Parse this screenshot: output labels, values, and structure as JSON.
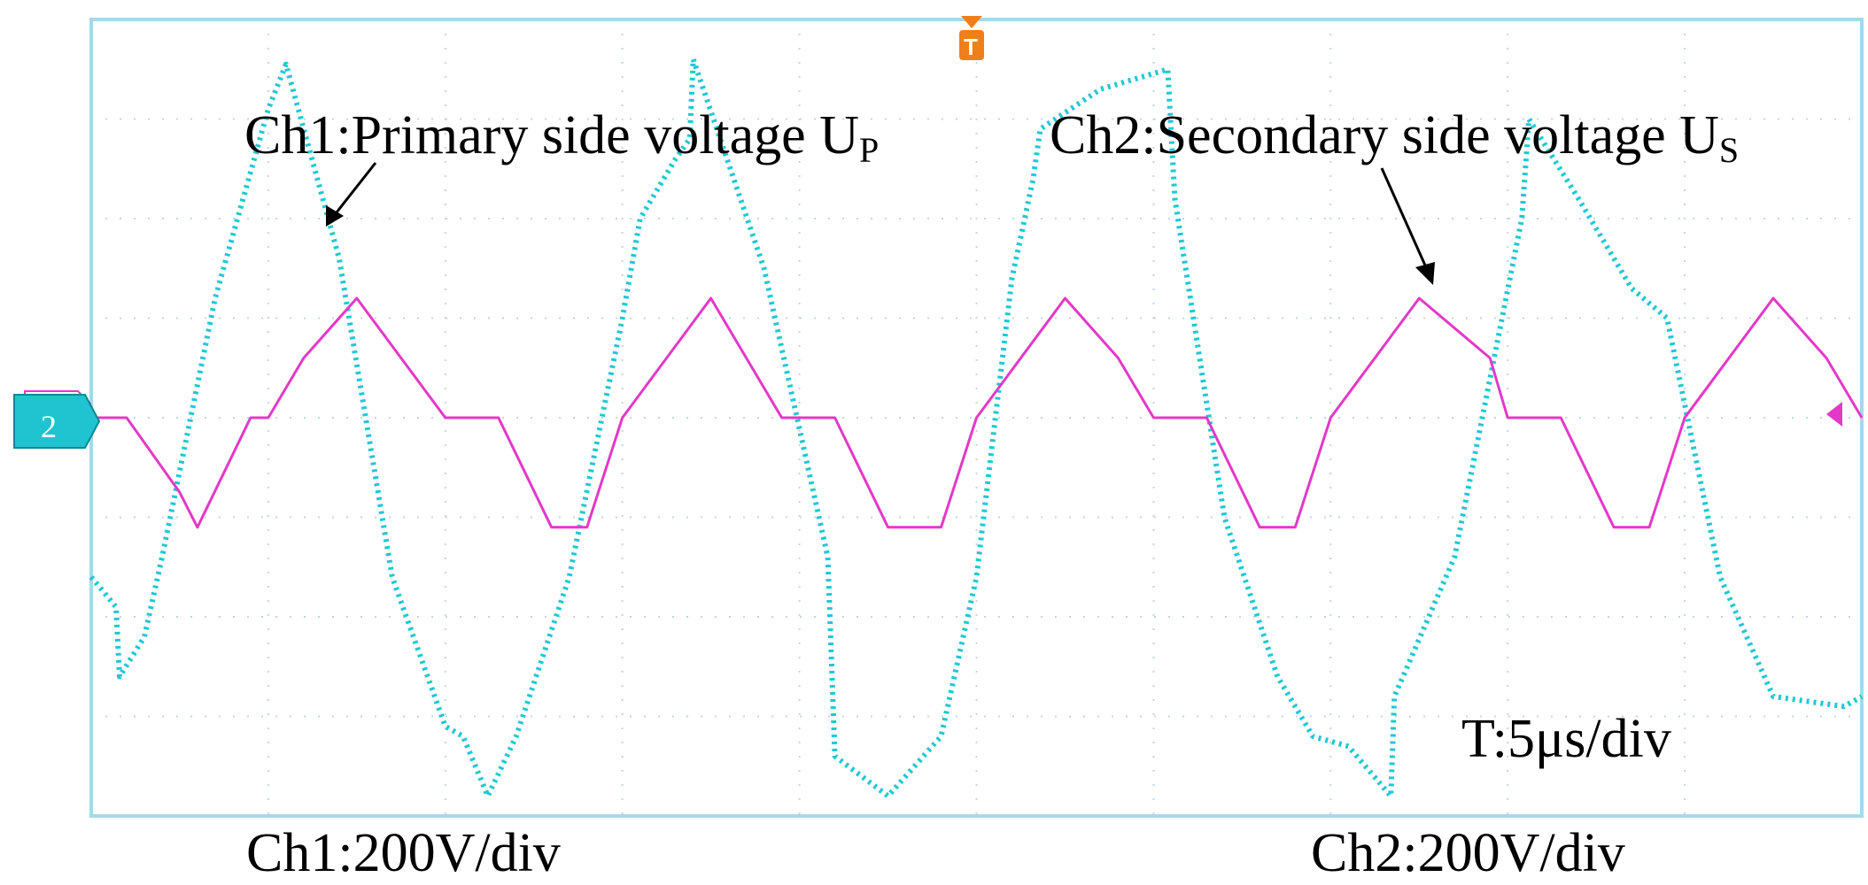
{
  "colors": {
    "ch1": "#1ec8d2",
    "ch2": "#e438c8",
    "grid": "#c8d4dc",
    "frame": "#a8d8ea",
    "trigger": "#f07f1a",
    "marker": "#20c4d0"
  },
  "chart_data": {
    "type": "line",
    "title": "",
    "grid": true,
    "x_divisions": 10,
    "y_divisions": 8,
    "annotations": {
      "ch1_label": "Ch1:Primary side voltage U",
      "ch1_sub": "P",
      "ch2_label": "Ch2:Secondary  side voltage U",
      "ch2_sub": "S",
      "timebase": "T:5μs/div",
      "ch1_scale": "Ch1:200V/div",
      "ch2_scale": "Ch2:200V/div"
    },
    "markers": {
      "ch2_ground": "2",
      "trigger": "T"
    },
    "x_unit": "μs",
    "y_unit": "V",
    "xlim": [
      0,
      50
    ],
    "ylim": [
      -800,
      800
    ],
    "series": [
      {
        "name": "Ch1:Primary side voltage U",
        "x": [
          0,
          0.7,
          0.8,
          1.5,
          2.0,
          3.5,
          5.0,
          5.5,
          7.0,
          8.5,
          10.0,
          10.5,
          11.2,
          12.0,
          13.5,
          15.0,
          15.5,
          16.5,
          16.9,
          17.0,
          19.0,
          20.8,
          21.0,
          22.5,
          24.0,
          25.0,
          26.0,
          26.6,
          26.8,
          28.5,
          30.4,
          30.6,
          32.0,
          33.5,
          34.5,
          35.5,
          36.7,
          36.8,
          38.5,
          40.4,
          40.6,
          42.0,
          43.5,
          44.5,
          46.0,
          47.5,
          49.5,
          50.0
        ],
        "y": [
          -320,
          -380,
          -520,
          -440,
          -280,
          240,
          620,
          710,
          320,
          -320,
          -620,
          -640,
          -760,
          -640,
          -320,
          200,
          400,
          520,
          560,
          720,
          300,
          -280,
          -680,
          -760,
          -640,
          -320,
          280,
          480,
          580,
          660,
          700,
          440,
          -200,
          -520,
          -640,
          -660,
          -760,
          -560,
          -280,
          400,
          600,
          440,
          260,
          200,
          -320,
          -560,
          -580,
          -560
        ]
      },
      {
        "name": "Ch2:Secondary  side voltage U",
        "x": [
          0,
          1.0,
          2.5,
          3.0,
          4.5,
          5.0,
          6.0,
          7.5,
          10.0,
          11.5,
          13.0,
          14.0,
          15.0,
          17.5,
          19.5,
          21.0,
          22.5,
          24.0,
          25.0,
          27.5,
          29.0,
          30.0,
          31.5,
          33.0,
          34.0,
          35.0,
          37.5,
          39.5,
          40.0,
          41.5,
          43.0,
          44.0,
          45.0,
          47.5,
          49.0,
          50.0
        ],
        "y": [
          0,
          0,
          -150,
          -220,
          0,
          0,
          120,
          240,
          0,
          0,
          -220,
          -220,
          0,
          240,
          0,
          0,
          -220,
          -220,
          0,
          240,
          120,
          0,
          0,
          -220,
          -220,
          0,
          240,
          120,
          0,
          0,
          -220,
          -220,
          0,
          240,
          120,
          0
        ]
      }
    ]
  }
}
